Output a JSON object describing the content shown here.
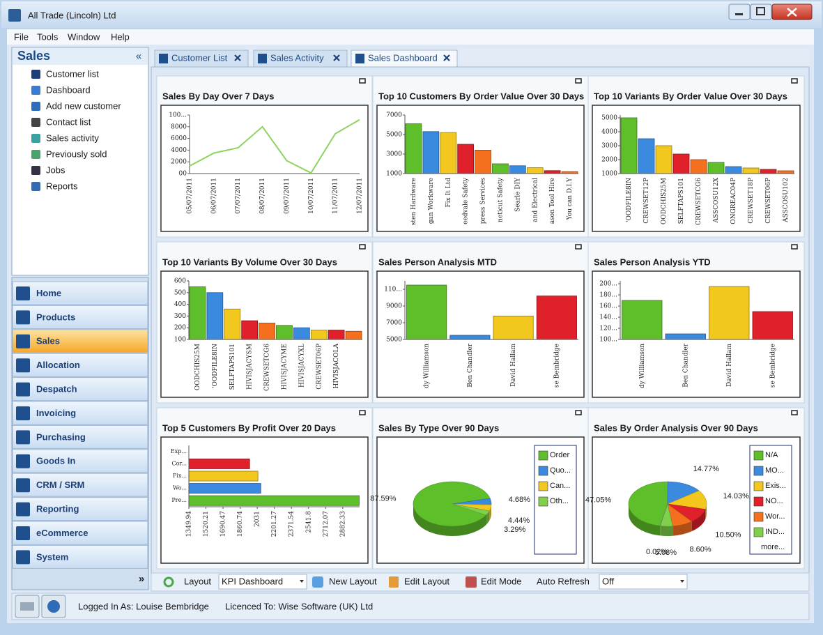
{
  "window": {
    "title": "All Trade (Lincoln) Ltd"
  },
  "menu": [
    "File",
    "Tools",
    "Window",
    "Help"
  ],
  "sidebar": {
    "title": "Sales",
    "collapse": "«",
    "items": [
      "Customer list",
      "Dashboard",
      "Add new customer",
      "Contact list",
      "Sales activity",
      "Previously sold",
      "Jobs",
      "Reports"
    ]
  },
  "nav": {
    "items": [
      "Home",
      "Products",
      "Sales",
      "Allocation",
      "Despatch",
      "Invoicing",
      "Purchasing",
      "Goods In",
      "CRM / SRM",
      "Reporting",
      "eCommerce",
      "System"
    ],
    "selected": 2,
    "more": "»"
  },
  "tabs": {
    "items": [
      "Customer List",
      "Sales Activity",
      "Sales Dashboard"
    ],
    "selected": 2
  },
  "toolbar": {
    "layout_label": "Layout",
    "layout_value": "KPI Dashboard",
    "new_layout": "New Layout",
    "edit_layout": "Edit Layout",
    "edit_mode": "Edit Mode",
    "auto_refresh_label": "Auto Refresh",
    "auto_refresh_value": "Off"
  },
  "status": {
    "logged_in": "Logged In As: Louise Bembridge",
    "licence": "Licenced To: Wise Software (UK) Ltd"
  },
  "chart_data": [
    {
      "type": "line",
      "title": "Sales By Day Over 7 Days",
      "categories": [
        "05/07/2011",
        "06/07/2011",
        "07/07/2011",
        "08/07/2011",
        "09/07/2011",
        "10/07/2011",
        "11/07/2011",
        "12/07/2011"
      ],
      "values": [
        1300,
        3500,
        4400,
        8000,
        2200,
        100,
        6800,
        9200
      ],
      "color": "#8dd35f",
      "ylim": [
        0,
        10000
      ],
      "yticks": [
        {
          "value": 0,
          "label": "00"
        },
        2000,
        4000,
        6000,
        8000,
        {
          "value": 10000,
          "label": "100..."
        }
      ]
    },
    {
      "type": "bar",
      "title": "Top 10 Customers By Order Value Over 30 Days",
      "categories": [
        "sten Hardware",
        "gan Workware",
        "Fix It Ltd",
        "eedvale Safety",
        "press Services",
        "neticut Safety",
        "Searle DIY",
        "and Electrical",
        "ason Tool Hire",
        "You can D.I.Y"
      ],
      "values": [
        6100,
        5300,
        5200,
        4000,
        3400,
        2000,
        1800,
        1600,
        1300,
        1200
      ],
      "colors": [
        "#5fbf2a",
        "#3a8be0",
        "#f2c81e",
        "#e0202a",
        "#f5701e",
        "#5fbf2a",
        "#3a8be0",
        "#f2c81e",
        "#e0202a",
        "#f5701e"
      ],
      "ylim": [
        1000,
        7000
      ],
      "yticks": [
        1000,
        3000,
        5000,
        7000
      ]
    },
    {
      "type": "bar",
      "title": "Top 10 Variants By Order Value Over 30 Days",
      "categories": [
        "'OODFILE8IN",
        "CREWSET12P",
        "OODCHIS25M",
        "SELFTAPS101",
        "CREWSETCG6",
        "ASSCOSU12X",
        "ONGREAC04P",
        "CREWSET18P",
        "CREWSET06P",
        "ASSCOSU102"
      ],
      "values": [
        5000,
        3500,
        3000,
        2400,
        2000,
        1800,
        1500,
        1400,
        1300,
        1200
      ],
      "colors": [
        "#5fbf2a",
        "#3a8be0",
        "#f2c81e",
        "#e0202a",
        "#f5701e",
        "#5fbf2a",
        "#3a8be0",
        "#f2c81e",
        "#e0202a",
        "#f5701e"
      ],
      "ylim": [
        1000,
        5200
      ],
      "yticks": [
        1000,
        2000,
        3000,
        4000,
        5000
      ]
    },
    {
      "type": "bar",
      "title": "Top 10 Variants By Volume Over 30 Days",
      "categories": [
        "OODCHIS25M",
        "'OODFILE8IN",
        "SELFTAPS101",
        "HIVISJACYSM",
        "CREWSETCG6",
        "HIVISJACYME",
        "HIVISJACYXL",
        "CREWSET06P",
        "HIVISJACOLA",
        null
      ],
      "values": [
        550,
        500,
        360,
        260,
        240,
        220,
        200,
        180,
        180,
        170
      ],
      "colors": [
        "#5fbf2a",
        "#3a8be0",
        "#f2c81e",
        "#e0202a",
        "#f5701e",
        "#5fbf2a",
        "#3a8be0",
        "#f2c81e",
        "#e0202a",
        "#f5701e"
      ],
      "ylim": [
        100,
        600
      ],
      "yticks": [
        100,
        200,
        300,
        400,
        500,
        600
      ]
    },
    {
      "type": "bar",
      "title": "Sales Person Analysis MTD",
      "categories": [
        "dy Williamson",
        "Ben Chandler",
        "David Hallam",
        "se Bembridge"
      ],
      "values": [
        11500,
        5500,
        7800,
        10200
      ],
      "colors": [
        "#5fbf2a",
        "#3a8be0",
        "#f2c81e",
        "#e0202a"
      ],
      "ylim": [
        5000,
        12000
      ],
      "yticks": [
        5000,
        7000,
        9000,
        {
          "value": 11000,
          "label": "110..."
        }
      ]
    },
    {
      "type": "bar",
      "title": "Sales Person Analysis YTD",
      "categories": [
        "dy Williamson",
        "Ben Chandler",
        "David Hallam",
        "se Bembridge"
      ],
      "values": [
        170,
        110,
        195,
        150
      ],
      "colors": [
        "#5fbf2a",
        "#3a8be0",
        "#f2c81e",
        "#e0202a"
      ],
      "ylim": [
        100,
        205
      ],
      "yticks": [
        {
          "value": 100,
          "label": "100..."
        },
        {
          "value": 120,
          "label": "120..."
        },
        {
          "value": 140,
          "label": "140..."
        },
        {
          "value": 160,
          "label": "160..."
        },
        {
          "value": 180,
          "label": "180..."
        },
        {
          "value": 200,
          "label": "200..."
        }
      ]
    },
    {
      "type": "hbar",
      "title": "Top 5 Customers By Profit Over 20 Days",
      "categories": [
        "Exp...",
        "Cor...",
        "Fix...",
        "Wo...",
        "Pre..."
      ],
      "values": [
        null,
        1955,
        2038,
        2066,
        3046
      ],
      "colors": [
        "#5fbf2a",
        "#e0202a",
        "#f2c81e",
        "#3a8be0",
        "#5fbf2a"
      ],
      "xlim": [
        1349.94,
        3050
      ],
      "xticks": [
        1349.94,
        1520.21,
        1690.47,
        1860.74,
        2031,
        2201.27,
        2371.54,
        2541.8,
        2712.07,
        2882.33
      ]
    },
    {
      "type": "pie",
      "title": "Sales By Type Over 90 Days",
      "categories": [
        "Order",
        "Quo...",
        "Can...",
        "Oth..."
      ],
      "values": [
        87.59,
        4.68,
        4.44,
        3.29
      ],
      "value_labels": [
        "87.59%",
        "4.68%",
        "4.44%",
        "3.29%"
      ],
      "colors": [
        "#5fbf2a",
        "#3a8be0",
        "#f2c81e",
        "#7fd04a"
      ]
    },
    {
      "type": "pie",
      "title": "Sales By Order Analysis Over 90 Days",
      "categories": [
        "N/A",
        "MO...",
        "Exis...",
        "NO...",
        "Wor...",
        "IND...",
        null
      ],
      "values": [
        47.05,
        14.77,
        14.03,
        10.5,
        8.6,
        5.08,
        0.02
      ],
      "value_labels": [
        "47.05%",
        "14.77%",
        "14.03%",
        "10.50%",
        "8.60%",
        "5.08%",
        "0.02%"
      ],
      "colors": [
        "#5fbf2a",
        "#3a8be0",
        "#f2c81e",
        "#e0202a",
        "#f5701e",
        "#7fd04a",
        "#999999"
      ],
      "legend_more": "more..."
    }
  ]
}
